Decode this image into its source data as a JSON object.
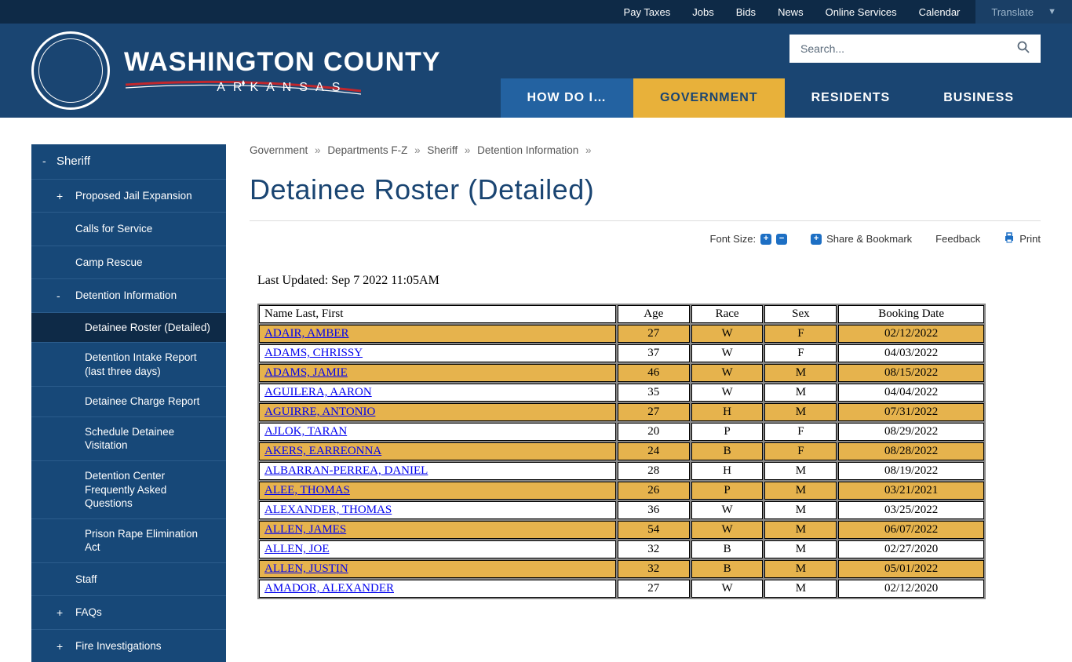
{
  "util_nav": [
    "Pay Taxes",
    "Jobs",
    "Bids",
    "News",
    "Online Services",
    "Calendar"
  ],
  "translate_label": "Translate",
  "logo": {
    "county": "WASHINGTON COUNTY",
    "state": "ARKANSAS"
  },
  "search": {
    "placeholder": "Search..."
  },
  "main_nav": [
    {
      "label": "HOW DO I…",
      "cls": "how"
    },
    {
      "label": "GOVERNMENT",
      "cls": "active"
    },
    {
      "label": "RESIDENTS",
      "cls": ""
    },
    {
      "label": "BUSINESS",
      "cls": ""
    }
  ],
  "sidebar": [
    {
      "label": "Sheriff",
      "level": "top",
      "sign": "-"
    },
    {
      "label": "Proposed Jail Expansion",
      "level": "sub",
      "sign": "+"
    },
    {
      "label": "Calls for Service",
      "level": "sub",
      "sign": ""
    },
    {
      "label": "Camp Rescue",
      "level": "sub",
      "sign": ""
    },
    {
      "label": "Detention Information",
      "level": "sub",
      "sign": "-"
    },
    {
      "label": "Detainee Roster (Detailed)",
      "level": "sub2",
      "sign": "",
      "active": true
    },
    {
      "label": "Detention Intake Report (last three days)",
      "level": "sub2",
      "sign": ""
    },
    {
      "label": "Detainee Charge Report",
      "level": "sub2",
      "sign": ""
    },
    {
      "label": "Schedule Detainee Visitation",
      "level": "sub2",
      "sign": ""
    },
    {
      "label": "Detention Center Frequently Asked Questions",
      "level": "sub2",
      "sign": ""
    },
    {
      "label": "Prison Rape Elimination Act",
      "level": "sub2",
      "sign": ""
    },
    {
      "label": "Staff",
      "level": "sub",
      "sign": ""
    },
    {
      "label": "FAQs",
      "level": "sub",
      "sign": "+"
    },
    {
      "label": "Fire Investigations",
      "level": "sub",
      "sign": "+"
    }
  ],
  "breadcrumb": [
    "Government",
    "Departments F-Z",
    "Sheriff",
    "Detention Information"
  ],
  "page_title": "Detainee Roster (Detailed)",
  "toolbar": {
    "font_size_label": "Font Size:",
    "share_label": "Share & Bookmark",
    "feedback_label": "Feedback",
    "print_label": "Print"
  },
  "last_updated": "Last Updated: Sep 7 2022 11:05AM",
  "table": {
    "columns": [
      "Name Last, First",
      "Age",
      "Race",
      "Sex",
      "Booking Date"
    ],
    "rows": [
      [
        "ADAIR, AMBER ",
        "27",
        "W",
        "F",
        "02/12/2022"
      ],
      [
        "ADAMS, CHRISSY ",
        "37",
        "W",
        "F",
        "04/03/2022"
      ],
      [
        "ADAMS, JAMIE ",
        "46",
        "W",
        "M",
        "08/15/2022"
      ],
      [
        "AGUILERA, AARON ",
        "35",
        "W",
        "M",
        "04/04/2022"
      ],
      [
        "AGUIRRE, ANTONIO ",
        "27",
        "H",
        "M",
        "07/31/2022"
      ],
      [
        "AJLOK, TARAN ",
        "20",
        "P",
        "F",
        "08/29/2022"
      ],
      [
        "AKERS, EARREONNA ",
        "24",
        "B",
        "F",
        "08/28/2022"
      ],
      [
        "ALBARRAN-PERREA, DANIEL ",
        "28",
        "H",
        "M",
        "08/19/2022"
      ],
      [
        "ALEE, THOMAS ",
        "26",
        "P",
        "M",
        "03/21/2021"
      ],
      [
        "ALEXANDER, THOMAS ",
        "36",
        "W",
        "M",
        "03/25/2022"
      ],
      [
        "ALLEN, JAMES ",
        "54",
        "W",
        "M",
        "06/07/2022"
      ],
      [
        "ALLEN, JOE ",
        "32",
        "B",
        "M",
        "02/27/2020"
      ],
      [
        "ALLEN, JUSTIN ",
        "32",
        "B",
        "M",
        "05/01/2022"
      ],
      [
        "AMADOR, ALEXANDER ",
        "27",
        "W",
        "M",
        "02/12/2020"
      ]
    ],
    "alt_color": "#e6b34d"
  },
  "colors": {
    "util_bg": "#0e2a47",
    "header_bg": "#1a4572",
    "nav_how_bg": "#2362a1",
    "nav_active_bg": "#e8b13a",
    "sidebar_bg": "#174878",
    "sidebar_active_bg": "#0e2a47",
    "link": "#0000ee"
  }
}
